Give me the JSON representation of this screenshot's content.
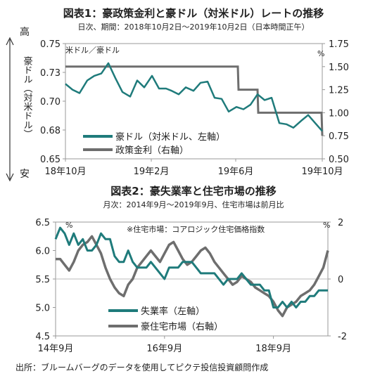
{
  "chart1": {
    "title": "図表1：豪政策金利と豪ドル（対米ドル）レートの推移",
    "subtitle": "日次、期間：2018年10月2日～2019年10月2日（日本時間正午）",
    "high_label": "高",
    "low_label": "安",
    "left_axis_label": "豪ドル（対米ドル）",
    "left_unit": "米ドル／豪ドル",
    "right_unit": "%",
    "x_ticks": [
      "18年10月",
      "19年2月",
      "19年6月",
      "19年10月"
    ],
    "left_ticks": [
      "0.75",
      "0.73",
      "0.70",
      "0.68",
      "0.65"
    ],
    "right_ticks": [
      "1.75",
      "1.50",
      "1.25",
      "1.00",
      "0.75",
      "0.50"
    ],
    "legend": [
      "豪ドル（対米ドル、左軸）",
      "政策金利（右軸）"
    ]
  },
  "chart2": {
    "title": "図表2：豪失業率と住宅市場の推移",
    "subtitle": "月次：2014年9月～2019年9月、住宅市場は前月比",
    "note": "※住宅市場：コアロジック住宅価格指数",
    "left_unit": "%",
    "right_unit": "%",
    "x_ticks": [
      "14年9月",
      "16年9月",
      "18年9月"
    ],
    "left_ticks": [
      "6.5",
      "6.0",
      "5.5",
      "5.0",
      "4.5"
    ],
    "right_ticks": [
      "2",
      "0",
      "-2"
    ],
    "legend": [
      "失業率（左軸）",
      "豪住宅市場（右軸）"
    ]
  },
  "source": "出所：ブルームバーグのデータを使用してピクテ投信投資顧問作成",
  "colors": {
    "teal": "#1f7b7b",
    "gray": "#6e6e6e"
  },
  "chart_data": [
    {
      "type": "line",
      "title": "図表1：豪政策金利と豪ドル（対米ドル）レートの推移",
      "xlabel": "",
      "ylabel": "米ドル／豪ドル",
      "ylim": [
        0.65,
        0.75
      ],
      "y2lim": [
        0.5,
        1.75
      ],
      "x_ticks": [
        "18年10月",
        "19年2月",
        "19年6月",
        "19年10月"
      ],
      "series": [
        {
          "name": "豪ドル（対米ドル、左軸）",
          "axis": "left",
          "x": [
            "2018-10-02",
            "2018-10-12",
            "2018-10-22",
            "2018-11-02",
            "2018-11-12",
            "2018-11-22",
            "2018-12-02",
            "2018-12-12",
            "2018-12-22",
            "2019-01-02",
            "2019-01-12",
            "2019-01-22",
            "2019-02-02",
            "2019-02-12",
            "2019-02-22",
            "2019-03-02",
            "2019-03-12",
            "2019-03-22",
            "2019-04-02",
            "2019-04-12",
            "2019-04-22",
            "2019-05-02",
            "2019-05-12",
            "2019-05-22",
            "2019-06-02",
            "2019-06-12",
            "2019-06-22",
            "2019-07-02",
            "2019-07-12",
            "2019-07-22",
            "2019-08-02",
            "2019-08-12",
            "2019-08-22",
            "2019-09-02",
            "2019-09-12",
            "2019-09-22",
            "2019-10-02"
          ],
          "values": [
            0.715,
            0.71,
            0.707,
            0.718,
            0.722,
            0.724,
            0.733,
            0.72,
            0.708,
            0.704,
            0.718,
            0.712,
            0.722,
            0.711,
            0.711,
            0.709,
            0.706,
            0.712,
            0.709,
            0.716,
            0.717,
            0.703,
            0.702,
            0.691,
            0.695,
            0.693,
            0.697,
            0.706,
            0.701,
            0.703,
            0.681,
            0.68,
            0.677,
            0.683,
            0.688,
            0.681,
            0.674
          ]
        },
        {
          "name": "政策金利（右軸）",
          "axis": "right",
          "x": [
            "2018-10-02",
            "2019-06-04",
            "2019-06-05",
            "2019-07-02",
            "2019-07-03",
            "2019-10-01",
            "2019-10-02"
          ],
          "values": [
            1.5,
            1.5,
            1.25,
            1.25,
            1.0,
            1.0,
            0.75
          ]
        }
      ]
    },
    {
      "type": "line",
      "title": "図表2：豪失業率と住宅市場の推移",
      "xlabel": "",
      "ylabel": "%",
      "ylim": [
        4.5,
        6.5
      ],
      "y2lim": [
        -2,
        2
      ],
      "x_ticks": [
        "14年9月",
        "16年9月",
        "18年9月"
      ],
      "series": [
        {
          "name": "失業率（左軸）",
          "axis": "left",
          "x": [
            "2014-09",
            "2014-10",
            "2014-11",
            "2014-12",
            "2015-01",
            "2015-02",
            "2015-03",
            "2015-04",
            "2015-05",
            "2015-06",
            "2015-07",
            "2015-08",
            "2015-09",
            "2015-10",
            "2015-11",
            "2015-12",
            "2016-01",
            "2016-02",
            "2016-03",
            "2016-04",
            "2016-05",
            "2016-06",
            "2016-07",
            "2016-08",
            "2016-09",
            "2016-10",
            "2016-11",
            "2016-12",
            "2017-01",
            "2017-02",
            "2017-03",
            "2017-04",
            "2017-05",
            "2017-06",
            "2017-07",
            "2017-08",
            "2017-09",
            "2017-10",
            "2017-11",
            "2017-12",
            "2018-01",
            "2018-02",
            "2018-03",
            "2018-04",
            "2018-05",
            "2018-06",
            "2018-07",
            "2018-08",
            "2018-09",
            "2018-10",
            "2018-11",
            "2018-12",
            "2019-01",
            "2019-02",
            "2019-03",
            "2019-04",
            "2019-05",
            "2019-06",
            "2019-07",
            "2019-08",
            "2019-09"
          ],
          "values": [
            6.2,
            6.4,
            6.3,
            6.1,
            6.3,
            6.1,
            6.2,
            6.0,
            6.0,
            6.1,
            6.3,
            6.2,
            6.2,
            5.9,
            5.8,
            5.8,
            6.0,
            5.8,
            5.7,
            5.7,
            5.7,
            5.8,
            5.7,
            5.6,
            5.5,
            5.7,
            5.7,
            5.7,
            5.8,
            5.8,
            5.8,
            5.7,
            5.6,
            5.6,
            5.6,
            5.6,
            5.5,
            5.4,
            5.5,
            5.5,
            5.5,
            5.6,
            5.5,
            5.4,
            5.4,
            5.4,
            5.3,
            5.3,
            5.0,
            5.0,
            5.1,
            5.0,
            5.1,
            5.0,
            5.1,
            5.1,
            5.2,
            5.2,
            5.3,
            5.3,
            5.3
          ]
        },
        {
          "name": "豪住宅市場（右軸）",
          "axis": "right",
          "x": [
            "2014-09",
            "2014-10",
            "2014-11",
            "2014-12",
            "2015-01",
            "2015-02",
            "2015-03",
            "2015-04",
            "2015-05",
            "2015-06",
            "2015-07",
            "2015-08",
            "2015-09",
            "2015-10",
            "2015-11",
            "2015-12",
            "2016-01",
            "2016-02",
            "2016-03",
            "2016-04",
            "2016-05",
            "2016-06",
            "2016-07",
            "2016-08",
            "2016-09",
            "2016-10",
            "2016-11",
            "2016-12",
            "2017-01",
            "2017-02",
            "2017-03",
            "2017-04",
            "2017-05",
            "2017-06",
            "2017-07",
            "2017-08",
            "2017-09",
            "2017-10",
            "2017-11",
            "2017-12",
            "2018-01",
            "2018-02",
            "2018-03",
            "2018-04",
            "2018-05",
            "2018-06",
            "2018-07",
            "2018-08",
            "2018-09",
            "2018-10",
            "2018-11",
            "2018-12",
            "2019-01",
            "2019-02",
            "2019-03",
            "2019-04",
            "2019-05",
            "2019-06",
            "2019-07",
            "2019-08",
            "2019-09"
          ],
          "values": [
            0.7,
            0.7,
            0.5,
            0.3,
            0.6,
            1.0,
            1.2,
            1.3,
            1.5,
            1.2,
            0.9,
            0.4,
            0.0,
            -0.3,
            -0.5,
            -0.6,
            -0.2,
            0.0,
            0.4,
            0.6,
            0.8,
            1.0,
            0.8,
            0.6,
            0.9,
            1.2,
            1.3,
            1.0,
            0.7,
            0.5,
            0.6,
            0.8,
            1.0,
            1.1,
            0.9,
            0.6,
            0.4,
            0.2,
            0.0,
            -0.2,
            -0.1,
            0.1,
            0.0,
            -0.1,
            -0.3,
            -0.4,
            -0.5,
            -0.6,
            -0.8,
            -1.1,
            -1.3,
            -1.0,
            -0.9,
            -0.8,
            -0.6,
            -0.5,
            -0.4,
            -0.2,
            0.1,
            0.4,
            1.0
          ]
        }
      ]
    }
  ]
}
